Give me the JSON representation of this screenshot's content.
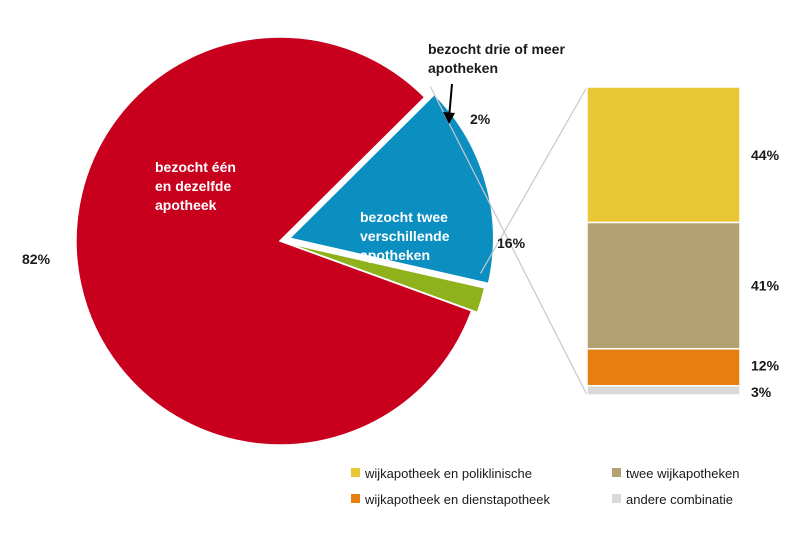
{
  "chart_data": [
    {
      "type": "pie",
      "slices": [
        {
          "label_lines": [
            "bezocht één",
            "en dezelfde",
            "apotheek"
          ],
          "value": 82,
          "value_label": "82%",
          "color": "#c8001e"
        },
        {
          "label_lines": [
            "bezocht twee",
            "verschillende",
            "apotheken"
          ],
          "value": 16,
          "value_label": "16%",
          "color": "#0a8fc0"
        },
        {
          "label_lines": [
            "bezocht drie of meer",
            "apotheken"
          ],
          "value": 2,
          "value_label": "2%",
          "color": "#8fb11b"
        }
      ]
    },
    {
      "type": "bar",
      "stacked": true,
      "breakdown_of": "bezocht twee verschillende apotheken",
      "segments": [
        {
          "name": "wijkapotheek en  poliklinische",
          "value": 44,
          "value_label": "44%",
          "color": "#e9c634"
        },
        {
          "name": "twee wijkapotheken",
          "value": 41,
          "value_label": "41%",
          "color": "#b3a171"
        },
        {
          "name": "wijkapotheek en dienstapotheek",
          "value": 12,
          "value_label": "12%",
          "color": "#e67f0d"
        },
        {
          "name": "andere combinatie",
          "value": 3,
          "value_label": "3%",
          "color": "#d9d9d9"
        }
      ],
      "legend_position": "bottom-right"
    }
  ]
}
